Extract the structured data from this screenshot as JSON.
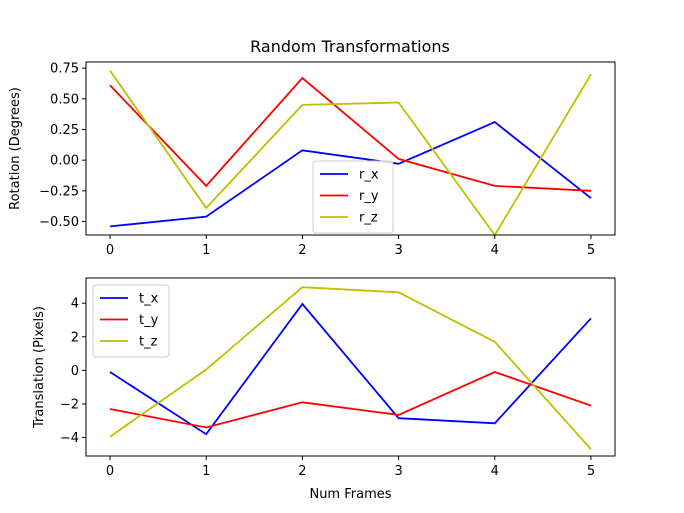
{
  "figure": {
    "title": "Random Transformations"
  },
  "chart_data": [
    {
      "type": "line",
      "ylabel": "Rotation (Degrees)",
      "xlabel": "",
      "x": [
        0,
        1,
        2,
        3,
        4,
        5
      ],
      "xlim": [
        -0.25,
        5.25
      ],
      "ylim": [
        -0.61,
        0.8
      ],
      "xticks": [
        "0",
        "1",
        "2",
        "3",
        "4",
        "5"
      ],
      "yticks": [
        {
          "value": 0.75,
          "label": "0.75"
        },
        {
          "value": 0.5,
          "label": "0.50"
        },
        {
          "value": 0.25,
          "label": "0.25"
        },
        {
          "value": 0.0,
          "label": "0.00"
        },
        {
          "value": -0.25,
          "label": "−0.25"
        },
        {
          "value": -0.5,
          "label": "−0.50"
        }
      ],
      "grid": false,
      "legend": {
        "placement": "lower-center"
      },
      "series": [
        {
          "name": "r_x",
          "color": "#0000ff",
          "values": [
            -0.54,
            -0.46,
            0.08,
            -0.03,
            0.31,
            -0.31
          ]
        },
        {
          "name": "r_y",
          "color": "#ff0000",
          "values": [
            0.61,
            -0.21,
            0.67,
            0.01,
            -0.21,
            -0.25
          ]
        },
        {
          "name": "r_z",
          "color": "#bfbf00",
          "values": [
            0.73,
            -0.39,
            0.45,
            0.47,
            -0.61,
            0.7
          ]
        }
      ]
    },
    {
      "type": "line",
      "ylabel": "Translation (Pixels)",
      "xlabel": "Num Frames",
      "x": [
        0,
        1,
        2,
        3,
        4,
        5
      ],
      "xlim": [
        -0.25,
        5.25
      ],
      "ylim": [
        -5.1,
        5.5
      ],
      "xticks": [
        "0",
        "1",
        "2",
        "3",
        "4",
        "5"
      ],
      "yticks": [
        {
          "value": 4,
          "label": "4"
        },
        {
          "value": 2,
          "label": "2"
        },
        {
          "value": 0,
          "label": "0"
        },
        {
          "value": -2,
          "label": "−2"
        },
        {
          "value": -4,
          "label": "−4"
        }
      ],
      "grid": false,
      "legend": {
        "placement": "upper-left"
      },
      "series": [
        {
          "name": "t_x",
          "color": "#0000ff",
          "values": [
            -0.1,
            -3.8,
            3.95,
            -2.85,
            -3.15,
            3.1
          ]
        },
        {
          "name": "t_y",
          "color": "#ff0000",
          "values": [
            -2.3,
            -3.4,
            -1.9,
            -2.65,
            -0.1,
            -2.1
          ]
        },
        {
          "name": "t_z",
          "color": "#bfbf00",
          "values": [
            -3.95,
            0.05,
            4.95,
            4.65,
            1.7,
            -4.7
          ]
        }
      ]
    }
  ]
}
